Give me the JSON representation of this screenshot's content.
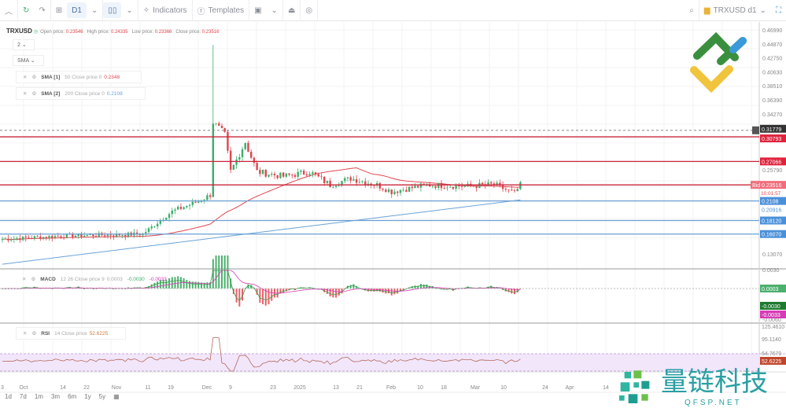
{
  "toolbar": {
    "timeframe": "D1",
    "indicators": "Indicators",
    "templates": "Templates",
    "symbol": "TRXUSD d1"
  },
  "legend": {
    "symbol": "TRXUSD",
    "open_label": "Open price:",
    "open": "0.23546",
    "high_label": "High price:",
    "high": "0.24335",
    "low_label": "Low price:",
    "low": "0.23366",
    "close_label": "Close price:",
    "close": "0.23516"
  },
  "selectors": {
    "count": "2",
    "type": "SMA"
  },
  "indicators": [
    {
      "name": "SMA [1]",
      "params": "50 Close price 0",
      "value": "0.2348",
      "color": "#e0454f"
    },
    {
      "name": "SMA [2]",
      "params": "200 Close price 0",
      "value": "0.2108",
      "color": "#6aa3d8"
    }
  ],
  "macd": {
    "name": "MACD",
    "params": "12 26 Close price 9",
    "hist": "0.0003",
    "macd": "-0.0030",
    "signal": "-0.0033"
  },
  "rsi": {
    "name": "RSI",
    "params": "14 Close price",
    "value": "52.6225"
  },
  "price_axis": [
    "0.46990",
    "0.44870",
    "0.42750",
    "0.40630",
    "0.38510",
    "0.36390",
    "0.34270",
    "0.25790",
    "0.13070"
  ],
  "price_labels": {
    "crosshair": "0.31779",
    "red1": "0.30793",
    "red2": "0.27066",
    "bid": "Bid 0.23516",
    "timer": "10:01:57",
    "blue1": "0.2108",
    "blue2": "0.20916",
    "blue3": "0.18120",
    "blue4": "0.16070",
    "macd_hist": "0.0003",
    "macd_line": "-0.0030",
    "macd_signal": "-0.0033",
    "macd_top": "0.0030",
    "macd_bot": "-0.0060"
  },
  "rsi_axis": [
    "125.4610",
    "95.1140",
    "64.7670"
  ],
  "time_axis": [
    "3",
    "Oct",
    "14",
    "22",
    "Nov",
    "11",
    "19",
    "Dec",
    "9",
    "23",
    "2025",
    "13",
    "21",
    "Feb",
    "10",
    "18",
    "Mar",
    "10",
    "24",
    "Apr",
    "14"
  ],
  "ranges": [
    "1d",
    "7d",
    "1m",
    "3m",
    "6m",
    "1y",
    "5y"
  ],
  "watermark": {
    "cn": "量链科技",
    "en": "QFSP.NET"
  },
  "colors": {
    "up": "#3cae6a",
    "down": "#e0454f",
    "sma50": "#e0454f",
    "sma200": "#6aa3d8",
    "bid": "#e0454f",
    "blue_level": "#4a90d9"
  },
  "chart_data": {
    "type": "candlestick",
    "symbol": "TRXUSD",
    "timeframe": "D1",
    "close_keypoints": [
      [
        "2024-09-23",
        0.153
      ],
      [
        "2024-10-14",
        0.158
      ],
      [
        "2024-11-04",
        0.16
      ],
      [
        "2024-11-10",
        0.161
      ],
      [
        "2024-11-20",
        0.195
      ],
      [
        "2024-11-30",
        0.212
      ],
      [
        "2024-12-03",
        0.22
      ],
      [
        "2024-12-04",
        0.33
      ],
      [
        "2024-12-08",
        0.31
      ],
      [
        "2024-12-10",
        0.255
      ],
      [
        "2024-12-15",
        0.3
      ],
      [
        "2024-12-19",
        0.255
      ],
      [
        "2024-12-28",
        0.248
      ],
      [
        "2025-01-06",
        0.255
      ],
      [
        "2025-01-13",
        0.235
      ],
      [
        "2025-01-20",
        0.245
      ],
      [
        "2025-01-29",
        0.235
      ],
      [
        "2025-02-03",
        0.225
      ],
      [
        "2025-02-15",
        0.235
      ],
      [
        "2025-03-01",
        0.233
      ],
      [
        "2025-03-10",
        0.236
      ],
      [
        "2025-03-17",
        0.222
      ],
      [
        "2025-03-19",
        0.235
      ]
    ],
    "spike": {
      "date": "2024-12-04",
      "high": 0.447
    },
    "levels_red": [
      0.30793,
      0.27066,
      0.23516
    ],
    "levels_blue": [
      0.2108,
      0.1812,
      0.1607
    ],
    "crosshair": 0.31779,
    "ylim": [
      0.1307,
      0.4699
    ]
  }
}
